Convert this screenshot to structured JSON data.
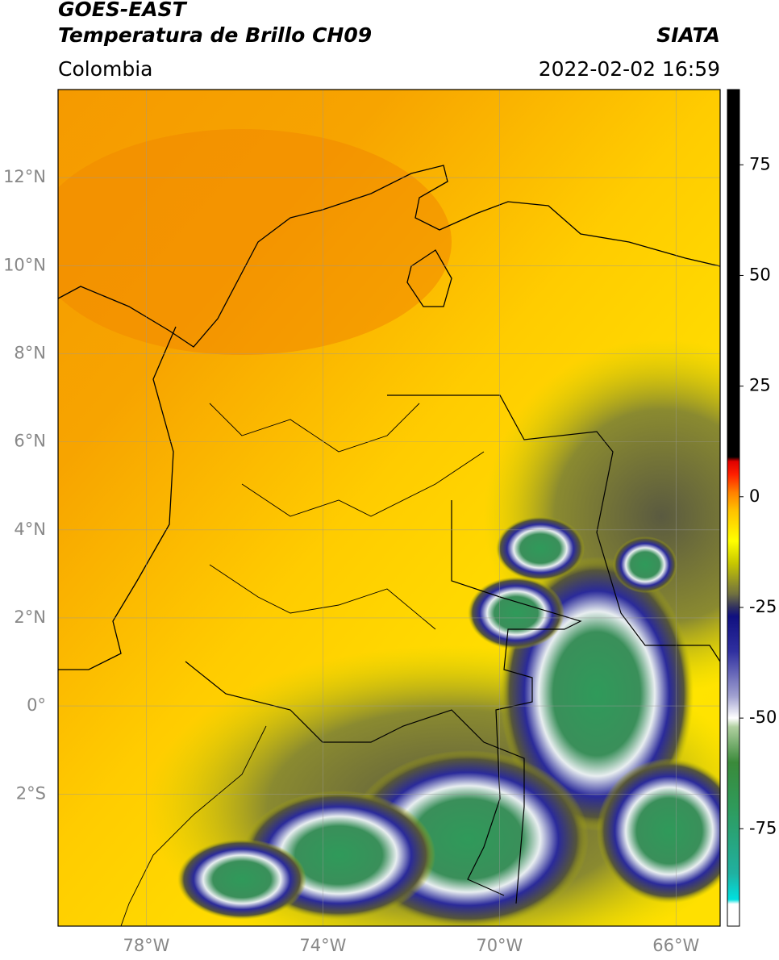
{
  "header": {
    "title": "GOES-EAST",
    "subtitle": "Temperatura de Brillo CH09",
    "agency": "SIATA",
    "region": "Colombia",
    "datetime": "2022-02-02 16:59"
  },
  "map": {
    "lat_range": [
      -5,
      14
    ],
    "lon_range": [
      -80,
      -65
    ],
    "grid": true,
    "lat_ticks": [
      {
        "value": 12,
        "label": "12°N"
      },
      {
        "value": 10,
        "label": "10°N"
      },
      {
        "value": 8,
        "label": "8°N"
      },
      {
        "value": 6,
        "label": "6°N"
      },
      {
        "value": 4,
        "label": "4°N"
      },
      {
        "value": 2,
        "label": "2°N"
      },
      {
        "value": 0,
        "label": "0°"
      },
      {
        "value": -2,
        "label": "2°S"
      }
    ],
    "lon_ticks": [
      {
        "value": -78,
        "label": "78°W"
      },
      {
        "value": -74,
        "label": "74°W"
      },
      {
        "value": -70,
        "label": "70°W"
      },
      {
        "value": -66,
        "label": "66°W"
      }
    ]
  },
  "colorbar": {
    "range": [
      -97,
      92
    ],
    "ticks": [
      75,
      50,
      25,
      0,
      -25,
      -50,
      -75
    ],
    "colormap": [
      {
        "value": -97,
        "color": "#ffffff"
      },
      {
        "value": -92,
        "color": "#ffffff"
      },
      {
        "value": -91,
        "color": "#00e0e0"
      },
      {
        "value": -85,
        "color": "#20b0a0"
      },
      {
        "value": -70,
        "color": "#2f9a5a"
      },
      {
        "value": -60,
        "color": "#3a8a3a"
      },
      {
        "value": -52,
        "color": "#b0d0a0"
      },
      {
        "value": -50,
        "color": "#ffffff"
      },
      {
        "value": -45,
        "color": "#a0a0d0"
      },
      {
        "value": -35,
        "color": "#3030a0"
      },
      {
        "value": -27,
        "color": "#101080"
      },
      {
        "value": -25,
        "color": "#303060"
      },
      {
        "value": -22,
        "color": "#707040"
      },
      {
        "value": -15,
        "color": "#c8c800"
      },
      {
        "value": -10,
        "color": "#ffff00"
      },
      {
        "value": -3,
        "color": "#ffc000"
      },
      {
        "value": 1,
        "color": "#ff8000"
      },
      {
        "value": 5,
        "color": "#ff2000"
      },
      {
        "value": 8,
        "color": "#e00000"
      },
      {
        "value": 9,
        "color": "#000000"
      },
      {
        "value": 92,
        "color": "#000000"
      }
    ]
  }
}
